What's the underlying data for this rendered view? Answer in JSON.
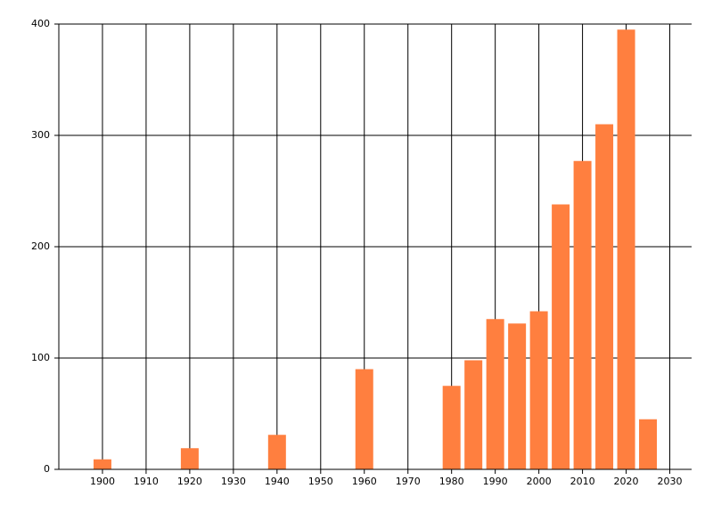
{
  "chart_data": {
    "type": "bar",
    "x": [
      1900,
      1920,
      1940,
      1960,
      1980,
      1985,
      1990,
      1995,
      2000,
      2005,
      2010,
      2015,
      2020,
      2025
    ],
    "values": [
      9,
      19,
      31,
      90,
      75,
      98,
      135,
      131,
      142,
      238,
      277,
      310,
      395,
      45
    ],
    "color": "#ff7f3f",
    "xlim": [
      1890,
      2035
    ],
    "xticks": [
      1900,
      1910,
      1920,
      1930,
      1940,
      1950,
      1960,
      1970,
      1980,
      1990,
      2000,
      2010,
      2020,
      2030
    ],
    "ylim": [
      0,
      400
    ],
    "yticks": [
      0,
      100,
      200,
      300,
      400
    ],
    "grid": true
  }
}
